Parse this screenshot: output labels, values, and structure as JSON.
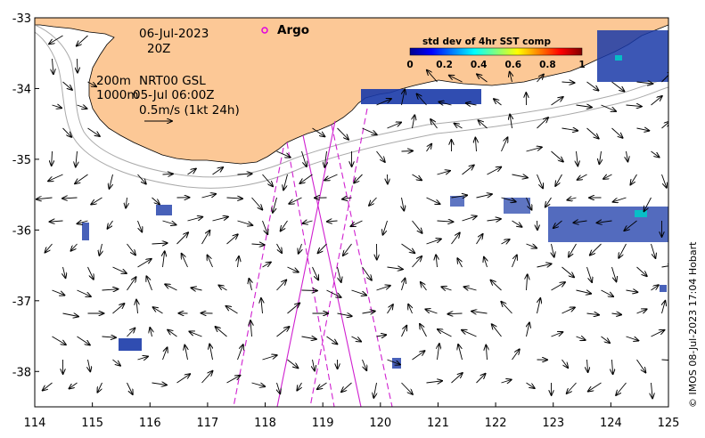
{
  "map": {
    "x_ticks": [
      "114",
      "115",
      "116",
      "117",
      "118",
      "119",
      "120",
      "121",
      "122",
      "123",
      "124",
      "125"
    ],
    "y_ticks": [
      "-33",
      "-34",
      "-35",
      "-36",
      "-37",
      "-38"
    ],
    "lon_range": [
      114,
      125
    ],
    "lat_range": [
      -38.5,
      -33
    ]
  },
  "annotations": {
    "date": "06-Jul-2023",
    "hour": "20Z",
    "depth_200": "200m",
    "product": "NRT00 GSL",
    "depth_1000": "1000m",
    "analysis_time": "05-Jul 06:00Z",
    "scale_label": "0.5m/s (1kt 24h)"
  },
  "legend": {
    "argo_label": "Argo",
    "argo_color": "#e000e0"
  },
  "colorbar": {
    "title": "std dev of 4hr SST comp",
    "ticks": [
      "0",
      "0.2",
      "0.4",
      "0.6",
      "0.8",
      "1"
    ]
  },
  "credit": "© IMOS 08-Jul-2023 17:04 Hobart",
  "colors": {
    "land": "#fcc896",
    "track": "#d020d0",
    "sst_patch": "#1a3aa8"
  }
}
